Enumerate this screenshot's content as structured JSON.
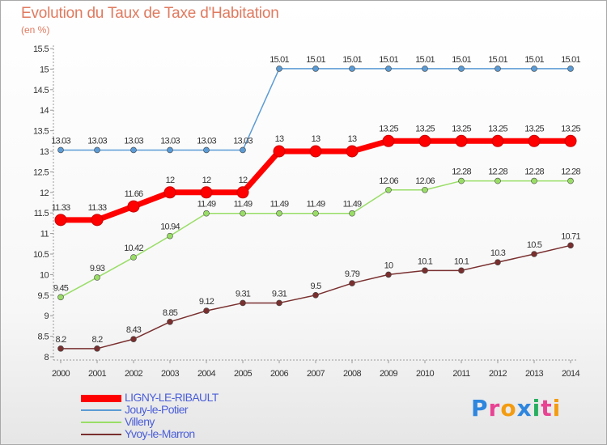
{
  "header": {
    "title": "Evolution du Taux de Taxe d'Habitation",
    "unit": "(en %)"
  },
  "brand": {
    "text": "Proxiti",
    "letters": [
      "P",
      "r",
      "o",
      "x",
      "i",
      "t",
      "i"
    ],
    "colors": [
      "#2e86de",
      "#e84393",
      "#f39c12",
      "#2e86de",
      "#27ae60",
      "#e84393",
      "#f39c12"
    ]
  },
  "chart_data": {
    "type": "line",
    "x": [
      "2000",
      "2001",
      "2002",
      "2003",
      "2004",
      "2005",
      "2006",
      "2007",
      "2008",
      "2009",
      "2010",
      "2011",
      "2012",
      "2013",
      "2014"
    ],
    "ylim": [
      8,
      15.5
    ],
    "yticks": [
      "8",
      "8.5",
      "9",
      "9.5",
      "10",
      "10.5",
      "11",
      "11.5",
      "12",
      "12.5",
      "13",
      "13.5",
      "14",
      "14.5",
      "15",
      "15.5"
    ],
    "grid": false,
    "legend_position": "bottom-left",
    "series": [
      {
        "name": "LIGNY-LE-RIBAULT",
        "color": "#ff0000",
        "width": 7,
        "marker": 7,
        "values": [
          11.33,
          11.33,
          11.66,
          12,
          12,
          12,
          13,
          13,
          13,
          13.25,
          13.25,
          13.25,
          13.25,
          13.25,
          13.25
        ],
        "labels": [
          "11.33",
          "11.33",
          "11.66",
          "12",
          "12",
          "12",
          "13",
          "13",
          "13",
          "13.25",
          "13.25",
          "13.25",
          "13.25",
          "13.25",
          "13.25"
        ]
      },
      {
        "name": "Jouy-le-Potier",
        "color": "#5b9bd5",
        "width": 1.5,
        "marker": 3.5,
        "values": [
          13.03,
          13.03,
          13.03,
          13.03,
          13.03,
          13.03,
          15.01,
          15.01,
          15.01,
          15.01,
          15.01,
          15.01,
          15.01,
          15.01,
          15.01
        ],
        "labels": [
          "13.03",
          "13.03",
          "13.03",
          "13.03",
          "13.03",
          "13.03",
          "15.01",
          "15.01",
          "15.01",
          "15.01",
          "15.01",
          "15.01",
          "15.01",
          "15.01",
          "15.01"
        ]
      },
      {
        "name": "Villeny",
        "color": "#99dd66",
        "width": 1.5,
        "marker": 3.5,
        "values": [
          9.45,
          9.93,
          10.42,
          10.94,
          11.49,
          11.49,
          11.49,
          11.49,
          11.49,
          12.06,
          12.06,
          12.28,
          12.28,
          12.28,
          12.28
        ],
        "labels": [
          "9.45",
          "9.93",
          "10.42",
          "10.94",
          "11.49",
          "11.49",
          "11.49",
          "11.49",
          "11.49",
          "12.06",
          "12.06",
          "12.28",
          "12.28",
          "12.28",
          "12.28"
        ]
      },
      {
        "name": "Yvoy-le-Marron",
        "color": "#7a2f2f",
        "width": 1.5,
        "marker": 3.5,
        "values": [
          8.2,
          8.2,
          8.43,
          8.85,
          9.12,
          9.31,
          9.31,
          9.5,
          9.79,
          10,
          10.1,
          10.1,
          10.3,
          10.5,
          10.71
        ],
        "labels": [
          "8.2",
          "8.2",
          "8.43",
          "8.85",
          "9.12",
          "9.31",
          "9.31",
          "9.5",
          "9.79",
          "10",
          "10.1",
          "10.1",
          "10.3",
          "10.5",
          "10.71"
        ]
      }
    ]
  }
}
